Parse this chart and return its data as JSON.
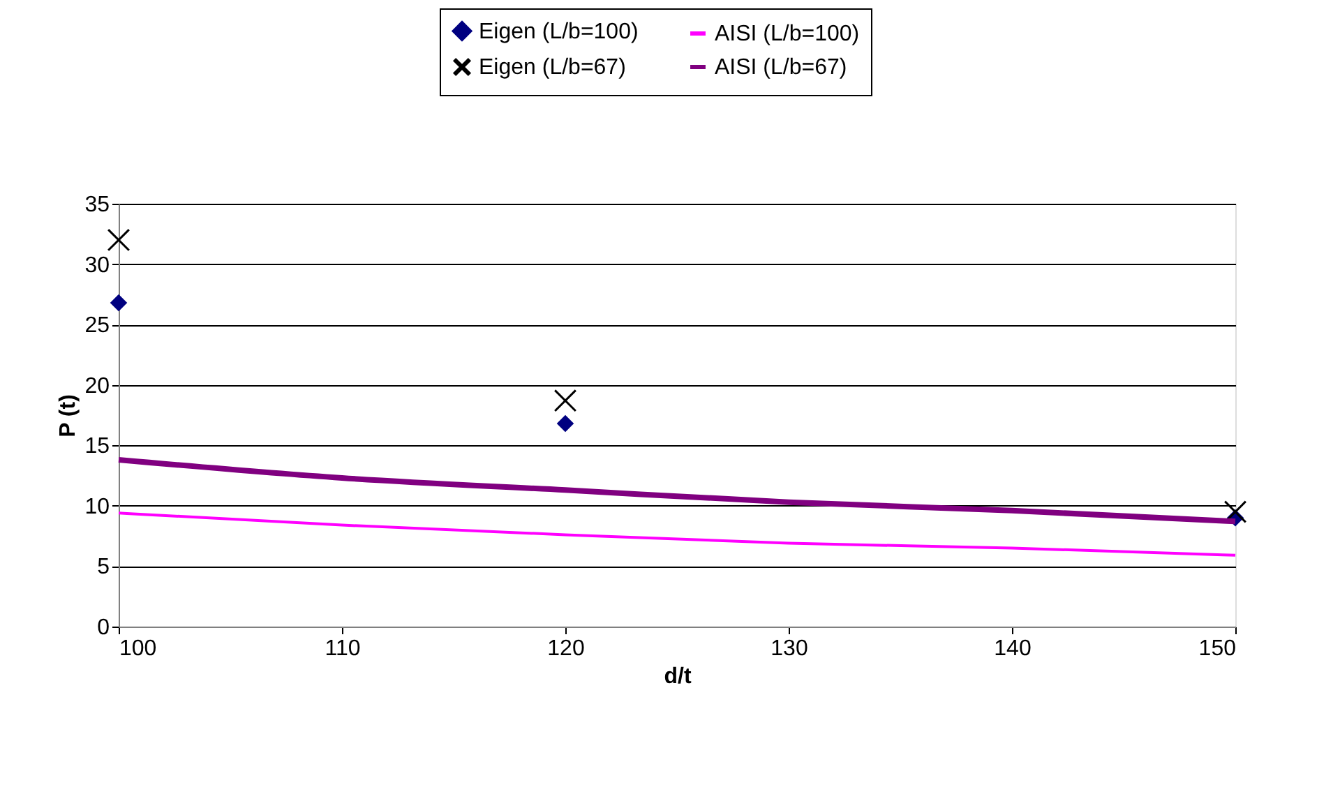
{
  "chart_data": {
    "type": "scatter",
    "xlabel": "d/t",
    "ylabel": "P (t)",
    "xlim": [
      100,
      150
    ],
    "xticks": [
      100,
      110,
      120,
      130,
      140,
      150
    ],
    "ylim": [
      0,
      35
    ],
    "yticks": [
      0,
      5,
      10,
      15,
      20,
      25,
      30,
      35
    ],
    "grid": "y",
    "legend": "top",
    "series": [
      {
        "name": "Eigen (L/b=100)",
        "marker": "diamond",
        "color": "#000080",
        "x": [
          100,
          120,
          150
        ],
        "values": [
          26.8,
          16.8,
          9.0
        ]
      },
      {
        "name": "AISI (L/b=100)",
        "type": "line",
        "marker": "none",
        "color": "#ff00ff",
        "x": [
          100,
          110,
          120,
          130,
          140,
          150
        ],
        "values": [
          9.4,
          8.4,
          7.6,
          6.9,
          6.5,
          5.9
        ]
      },
      {
        "name": "Eigen (L/b=67)",
        "marker": "cross",
        "color": "#000000",
        "x": [
          100,
          120,
          150
        ],
        "values": [
          32.0,
          18.7,
          9.5
        ]
      },
      {
        "name": "AISI (L/b=67)",
        "type": "line",
        "marker": "none",
        "color": "#800080",
        "x": [
          100,
          110,
          120,
          130,
          140,
          150
        ],
        "values": [
          13.8,
          12.3,
          11.3,
          10.3,
          9.6,
          8.7
        ]
      }
    ]
  }
}
